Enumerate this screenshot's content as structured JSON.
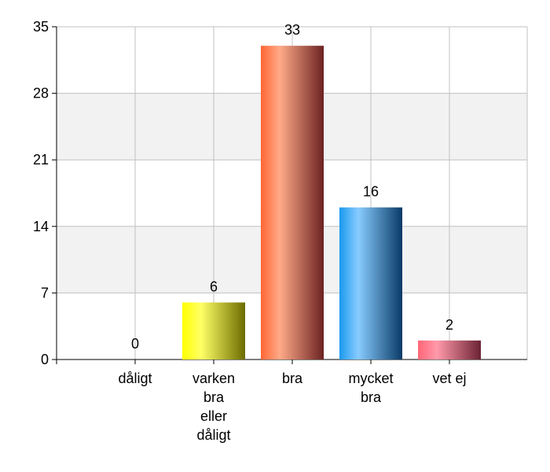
{
  "chart_data": {
    "type": "bar",
    "categories": [
      [
        "dåligt"
      ],
      [
        "varken",
        "bra",
        "eller",
        "dåligt"
      ],
      [
        "bra"
      ],
      [
        "mycket",
        "bra"
      ],
      [
        "vet ej"
      ]
    ],
    "values": [
      0,
      6,
      33,
      16,
      2
    ],
    "ylim": [
      0,
      35
    ],
    "yticks": [
      0,
      7,
      14,
      21,
      28,
      35
    ],
    "grid": true,
    "alternating_band_color": "#f2f2f2",
    "bar_colors": [
      {
        "dark": "#c8c800",
        "mid": "#ffff33",
        "end": "#6b6b00"
      },
      {
        "dark": "#ffff00",
        "mid": "#ffff66",
        "end": "#6b6b00"
      },
      {
        "dark": "#ff6633",
        "mid": "#ffaa88",
        "end": "#6b2222"
      },
      {
        "dark": "#1a99ee",
        "mid": "#88ccff",
        "end": "#0a3a66"
      },
      {
        "dark": "#ff6677",
        "mid": "#ff99aa",
        "end": "#6b2233"
      }
    ],
    "title": "",
    "xlabel": "",
    "ylabel": ""
  }
}
